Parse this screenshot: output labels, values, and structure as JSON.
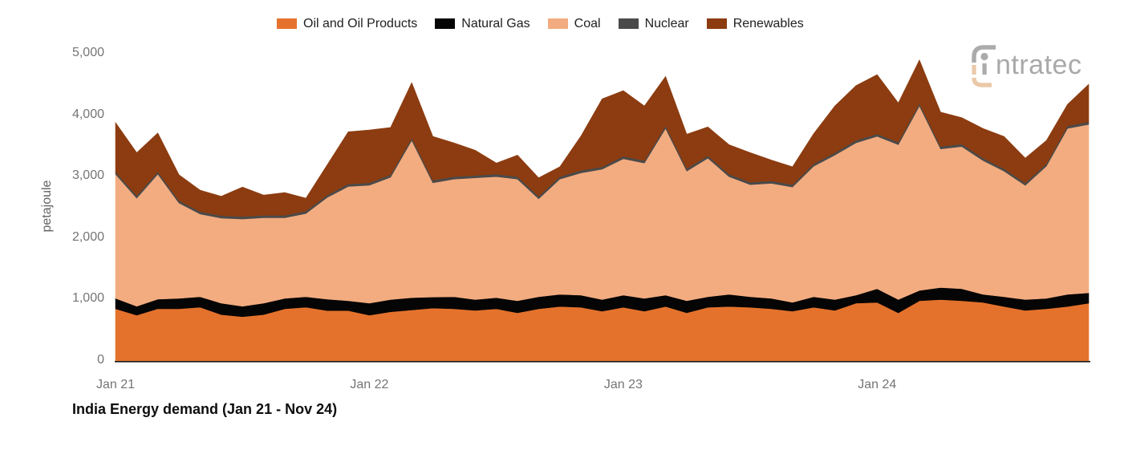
{
  "title": "India Energy demand (Jan 21 - Nov 24)",
  "logo": {
    "text": "ntratec",
    "full_name": "intratec"
  },
  "y_axis": {
    "label": "petajoule",
    "tick_labels": [
      "0",
      "1,000",
      "2,000",
      "3,000",
      "4,000",
      "5,000"
    ]
  },
  "x_axis": {
    "ticks": [
      {
        "label": "Jan 21",
        "index": 0
      },
      {
        "label": "Jan 22",
        "index": 12
      },
      {
        "label": "Jan 23",
        "index": 24
      },
      {
        "label": "Jan 24",
        "index": 36
      }
    ]
  },
  "legend": [
    {
      "key": "oil",
      "label": "Oil and Oil Products",
      "color": "#E4722C"
    },
    {
      "key": "gas",
      "label": "Natural Gas",
      "color": "#050505"
    },
    {
      "key": "coal",
      "label": "Coal",
      "color": "#F3AC80"
    },
    {
      "key": "nuclear",
      "label": "Nuclear",
      "color": "#4A4A4A"
    },
    {
      "key": "renewables",
      "label": "Renewables",
      "color": "#8C3C10"
    }
  ],
  "chart_data": {
    "type": "area",
    "stacked": true,
    "title": "India Energy demand (Jan 21 - Nov 24)",
    "xlabel": "",
    "ylabel": "petajoule",
    "ylim": [
      0,
      5000
    ],
    "y_ticks": [
      0,
      1000,
      2000,
      3000,
      4000,
      5000
    ],
    "grid": false,
    "legend_position": "top",
    "categories": [
      "Jan 21",
      "Feb 21",
      "Mar 21",
      "Apr 21",
      "May 21",
      "Jun 21",
      "Jul 21",
      "Aug 21",
      "Sep 21",
      "Oct 21",
      "Nov 21",
      "Dec 21",
      "Jan 22",
      "Feb 22",
      "Mar 22",
      "Apr 22",
      "May 22",
      "Jun 22",
      "Jul 22",
      "Aug 22",
      "Sep 22",
      "Oct 22",
      "Nov 22",
      "Dec 22",
      "Jan 23",
      "Feb 23",
      "Mar 23",
      "Apr 23",
      "May 23",
      "Jun 23",
      "Jul 23",
      "Aug 23",
      "Sep 23",
      "Oct 23",
      "Nov 23",
      "Dec 23",
      "Jan 24",
      "Feb 24",
      "Mar 24",
      "Apr 24",
      "May 24",
      "Jun 24",
      "Jul 24",
      "Aug 24",
      "Sep 24",
      "Oct 24",
      "Nov 24"
    ],
    "series": [
      {
        "key": "oil",
        "name": "Oil and Oil Products",
        "color": "#E4722C",
        "values": [
          850,
          745,
          850,
          850,
          875,
          755,
          720,
          755,
          850,
          875,
          820,
          820,
          745,
          800,
          830,
          860,
          848,
          822,
          848,
          783,
          848,
          887,
          874,
          809,
          874,
          809,
          887,
          783,
          874,
          887,
          874,
          848,
          809,
          874,
          822,
          940,
          953,
          783,
          979,
          1000,
          979,
          953,
          887,
          822,
          848,
          887,
          940
        ]
      },
      {
        "key": "gas",
        "name": "Natural Gas",
        "color": "#050505",
        "values": [
          170,
          145,
          155,
          170,
          170,
          185,
          170,
          185,
          170,
          170,
          185,
          160,
          195,
          200,
          200,
          180,
          196,
          178,
          182,
          196,
          196,
          196,
          196,
          191,
          196,
          209,
          183,
          196,
          170,
          196,
          170,
          170,
          144,
          170,
          178,
          130,
          222,
          217,
          169,
          196,
          196,
          130,
          157,
          178,
          170,
          196,
          169
        ]
      },
      {
        "key": "coal",
        "name": "Coal",
        "color": "#F3AC80",
        "values": [
          2020,
          1760,
          2035,
          1550,
          1345,
          1385,
          1420,
          1390,
          1310,
          1355,
          1655,
          1860,
          1920,
          1990,
          2560,
          1860,
          1916,
          1980,
          1970,
          1981,
          1596,
          1877,
          1990,
          2120,
          2220,
          2202,
          2715,
          2111,
          2256,
          1917,
          1826,
          1872,
          1877,
          2126,
          2350,
          2480,
          2480,
          2520,
          3002,
          2254,
          2315,
          2180,
          2045,
          1858,
          2153,
          2702,
          2741
        ]
      },
      {
        "key": "nuclear",
        "name": "Nuclear",
        "color": "#4A4A4A",
        "values": [
          40,
          40,
          40,
          40,
          40,
          40,
          40,
          40,
          40,
          40,
          40,
          40,
          40,
          40,
          40,
          40,
          40,
          40,
          40,
          40,
          40,
          40,
          40,
          40,
          40,
          40,
          40,
          40,
          40,
          40,
          40,
          40,
          40,
          40,
          40,
          40,
          40,
          40,
          40,
          40,
          40,
          40,
          40,
          40,
          40,
          40,
          40
        ]
      },
      {
        "key": "renewables",
        "name": "Renewables",
        "color": "#8C3C10",
        "values": [
          800,
          700,
          630,
          420,
          350,
          315,
          480,
          330,
          370,
          210,
          490,
          850,
          860,
          770,
          900,
          715,
          550,
          410,
          180,
          350,
          300,
          160,
          560,
          1105,
          1070,
          890,
          805,
          560,
          470,
          480,
          480,
          340,
          290,
          490,
          760,
          890,
          965,
          640,
          710,
          560,
          430,
          480,
          525,
          404,
          378,
          351,
          612
        ]
      }
    ]
  }
}
